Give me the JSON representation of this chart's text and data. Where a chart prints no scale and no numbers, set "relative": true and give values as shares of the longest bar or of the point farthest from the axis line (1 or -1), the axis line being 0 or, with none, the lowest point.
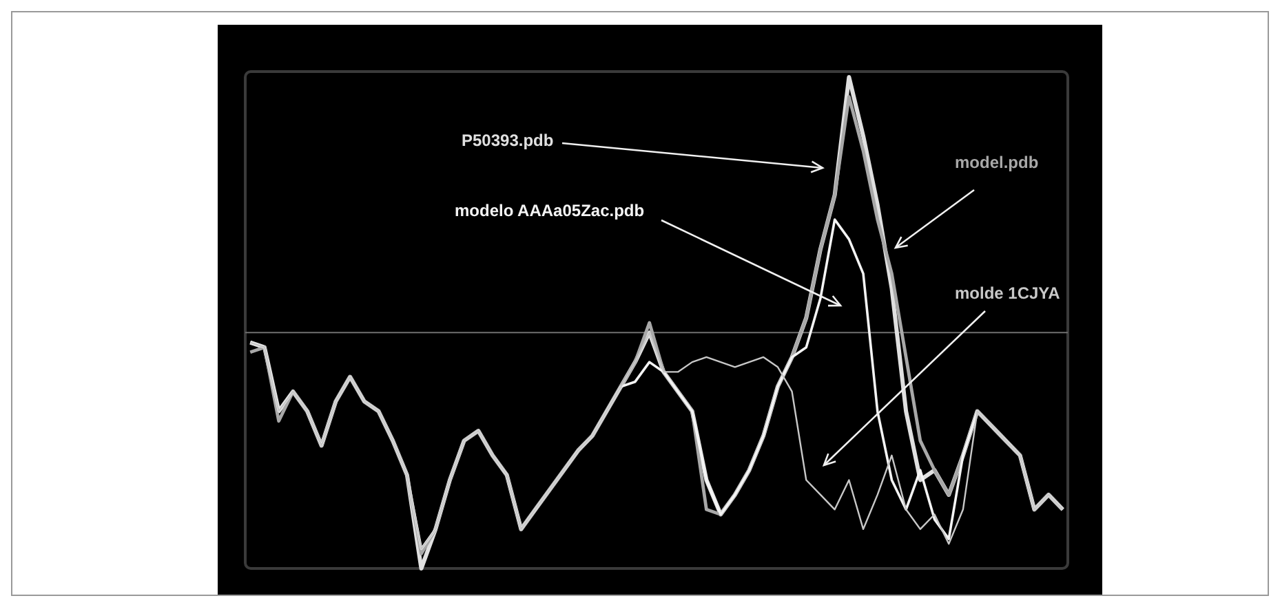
{
  "chart_data": {
    "type": "line",
    "relative": true,
    "categories": [
      null,
      null,
      null,
      null,
      null,
      null,
      null,
      null,
      null,
      null,
      null,
      null,
      null,
      null,
      null,
      null,
      null,
      null,
      null,
      null,
      null,
      null,
      null,
      null,
      null,
      null,
      null,
      null,
      null,
      null,
      null,
      null,
      null,
      null,
      null,
      null,
      null,
      null,
      null,
      null,
      null,
      null,
      null,
      null,
      null,
      null,
      null,
      null,
      null,
      null,
      null,
      null,
      null,
      null,
      null,
      null,
      null,
      null
    ],
    "ref_lines": [
      {
        "axis": "y",
        "value": 0.48,
        "color": "#707070"
      }
    ],
    "series": [
      {
        "name": "P50393.pdb",
        "color": "#e0e0e0",
        "values": [
          0.46,
          0.45,
          0.32,
          0.36,
          0.32,
          0.25,
          0.34,
          0.39,
          0.34,
          0.32,
          0.26,
          0.19,
          0,
          0.08,
          0.18,
          0.26,
          0.28,
          0.23,
          0.19,
          0.08,
          0.12,
          0.16,
          0.2,
          0.24,
          0.27,
          0.32,
          0.37,
          0.42,
          0.48,
          0.4,
          0.36,
          0.32,
          0.18,
          0.11,
          0.15,
          0.2,
          0.27,
          0.37,
          0.43,
          0.51,
          0.65,
          0.76,
          1,
          0.88,
          0.74,
          0.57,
          0.32,
          0.18,
          0.2,
          0.15,
          0.23,
          0.32,
          0.29,
          0.26,
          0.23,
          0.12,
          0.15,
          0.12
        ]
      },
      {
        "name": "model.pdb",
        "color": "#a8a8a8",
        "values": [
          0.44,
          0.45,
          0.3,
          0.36,
          0.32,
          0.25,
          0.34,
          0.39,
          0.34,
          0.32,
          0.26,
          0.19,
          0.03,
          0.08,
          0.18,
          0.26,
          0.28,
          0.23,
          0.19,
          0.08,
          0.12,
          0.16,
          0.2,
          0.24,
          0.27,
          0.32,
          0.37,
          0.42,
          0.5,
          0.4,
          0.36,
          0.32,
          0.12,
          0.11,
          0.15,
          0.2,
          0.27,
          0.37,
          0.43,
          0.51,
          0.65,
          0.76,
          0.96,
          0.85,
          0.71,
          0.6,
          0.43,
          0.26,
          0.2,
          0.15,
          0.23,
          0.32,
          0.29,
          0.26,
          0.23,
          0.12,
          0.15,
          0.12
        ]
      },
      {
        "name": "modelo AAAa05Zac.pdb",
        "color": "#f4f4f4",
        "values": [
          0.46,
          0.45,
          0.32,
          0.36,
          0.32,
          0.25,
          0.34,
          0.39,
          0.34,
          0.32,
          0.26,
          0.19,
          0.04,
          0.08,
          0.18,
          0.26,
          0.28,
          0.23,
          0.19,
          0.08,
          0.12,
          0.16,
          0.2,
          0.24,
          0.27,
          0.32,
          0.37,
          0.38,
          0.42,
          0.4,
          0.36,
          0.32,
          0.18,
          0.11,
          0.15,
          0.2,
          0.27,
          0.37,
          0.43,
          0.45,
          0.55,
          0.71,
          0.67,
          0.6,
          0.32,
          0.18,
          0.12,
          0.2,
          0.1,
          0.06,
          0.23,
          0.32,
          0.29,
          0.26,
          0.23,
          0.12,
          0.15,
          0.12
        ]
      },
      {
        "name": "molde 1CJYA",
        "color": "#c8c8c8",
        "values": [
          0.46,
          0.45,
          0.32,
          0.36,
          0.32,
          0.25,
          0.34,
          0.39,
          0.34,
          0.32,
          0.26,
          0.19,
          0.04,
          0.08,
          0.18,
          0.26,
          0.28,
          0.23,
          0.19,
          0.08,
          0.12,
          0.16,
          0.2,
          0.24,
          0.27,
          0.32,
          0.37,
          0.42,
          0.48,
          0.4,
          0.4,
          0.42,
          0.43,
          0.42,
          0.41,
          0.42,
          0.43,
          0.41,
          0.36,
          0.18,
          0.15,
          0.12,
          0.18,
          0.08,
          0.15,
          0.23,
          0.12,
          0.08,
          0.11,
          0.05,
          0.12,
          0.32,
          0.29,
          0.26,
          0.23,
          0.12,
          0.15,
          0.12
        ]
      }
    ]
  }
}
